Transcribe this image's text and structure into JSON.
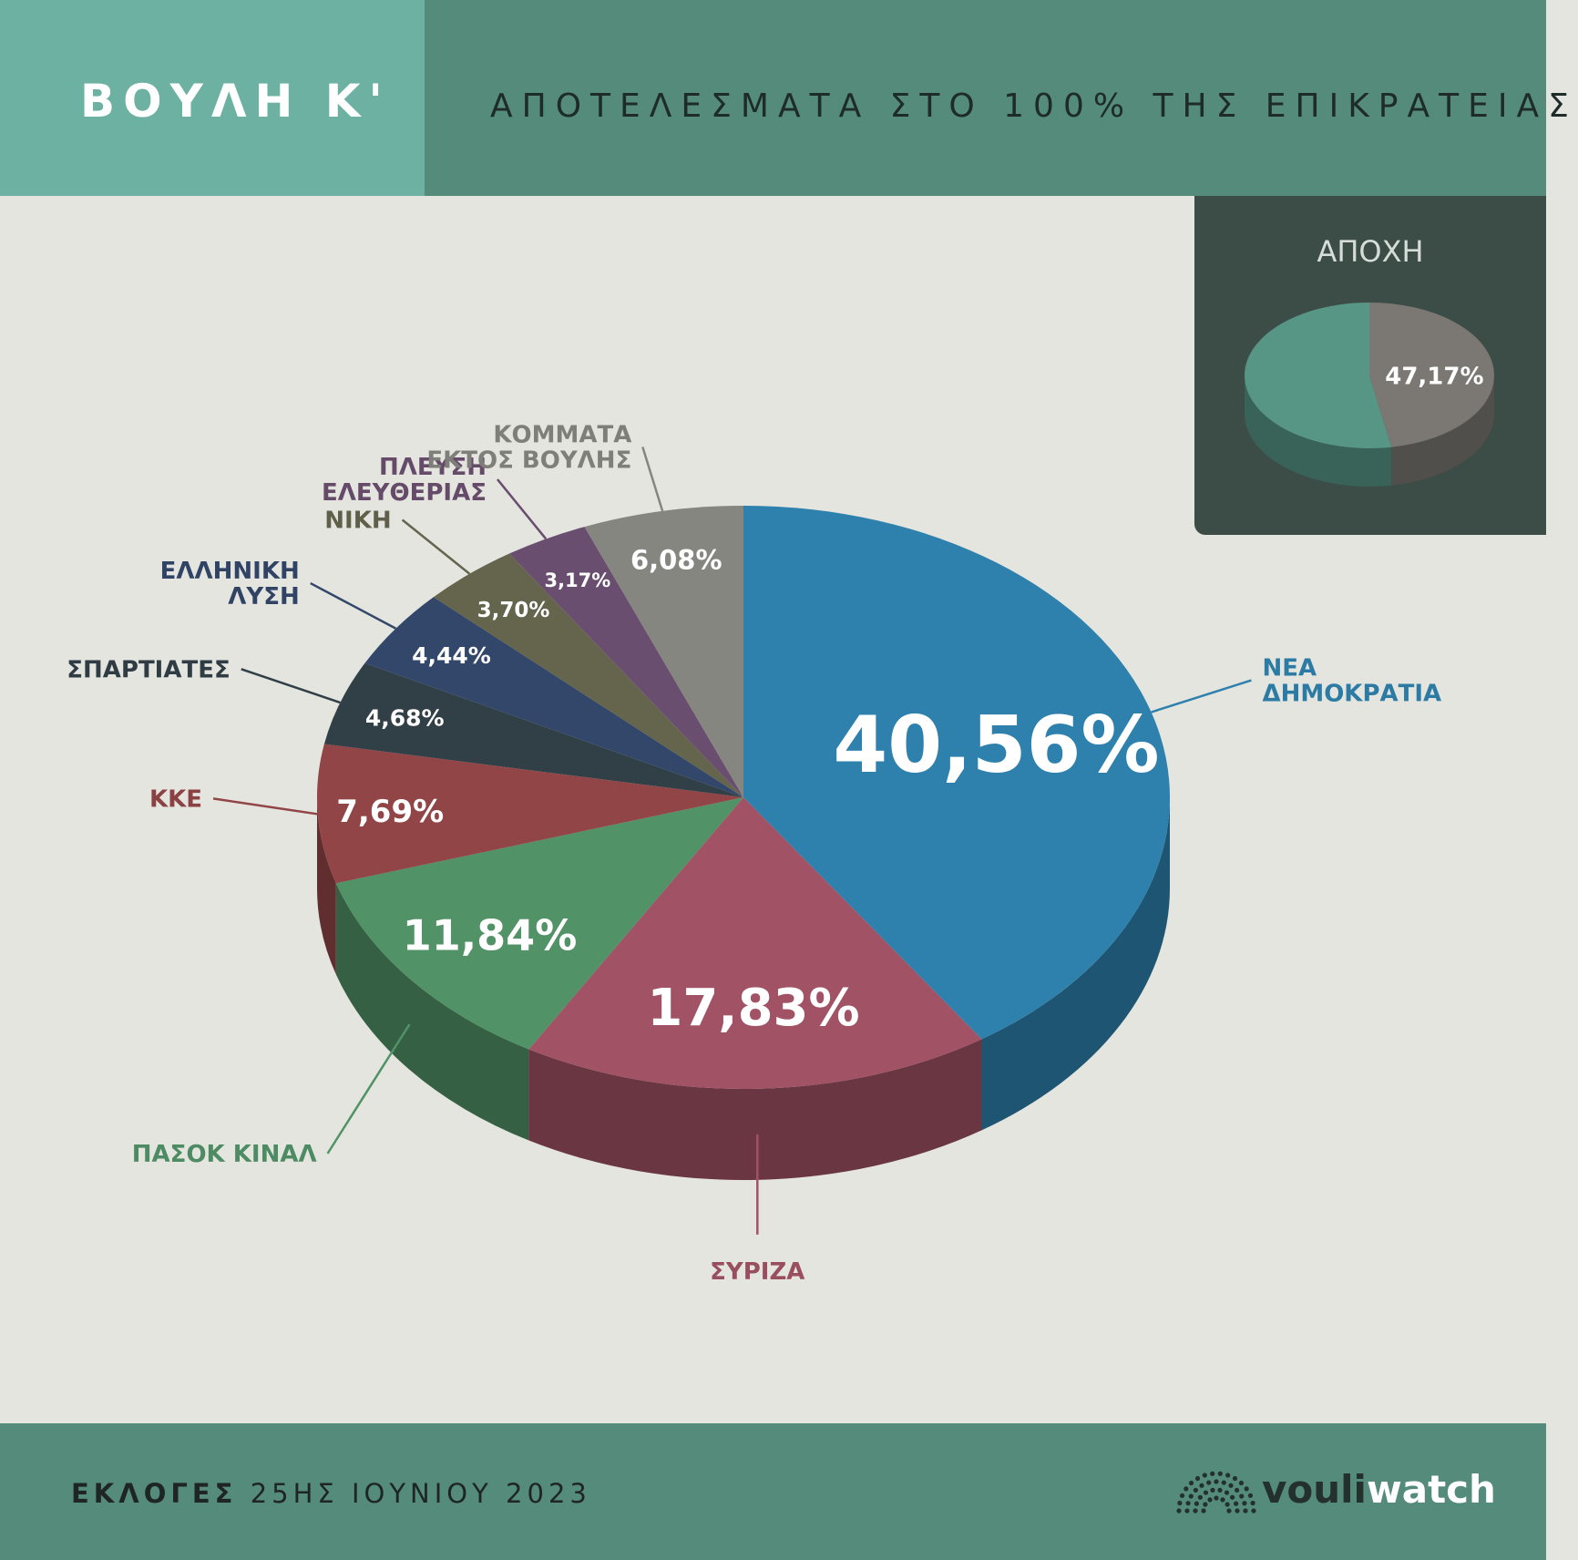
{
  "header": {
    "title": "ΒΟΥΛΗ Κ'",
    "subtitle": "ΑΠΟΤΕΛΕΣΜΑΤΑ ΣΤΟ 100% ΤΗΣ ΕΠΙΚΡΑΤΕΙΑΣ"
  },
  "abstention": {
    "title": "ΑΠΟΧΗ",
    "value": 47.17,
    "label": "47,17%",
    "colors": {
      "abstention": "#7b7772",
      "voted": "#579585"
    }
  },
  "chart_data": {
    "type": "pie",
    "slices": [
      {
        "name": "ΝΕΑ ΔΗΜΟΚΡΑΤΙΑ",
        "value": 40.56,
        "label": "40,56%",
        "color": "#2e81ad"
      },
      {
        "name": "ΣΥΡΙΖΑ",
        "value": 17.83,
        "label": "17,83%",
        "color": "#a15264"
      },
      {
        "name": "ΠΑΣΟΚ ΚΙΝΑΛ",
        "value": 11.84,
        "label": "11,84%",
        "color": "#519267"
      },
      {
        "name": "ΚΚΕ",
        "value": 7.69,
        "label": "7,69%",
        "color": "#914546"
      },
      {
        "name": "ΣΠΑΡΤΙΑΤΕΣ",
        "value": 4.68,
        "label": "4,68%",
        "color": "#313f46"
      },
      {
        "name": "ΕΛΛΗΝΙΚΗ ΛΥΣΗ",
        "value": 4.44,
        "label": "4,44%",
        "color": "#32476a"
      },
      {
        "name": "ΝΙΚΗ",
        "value": 3.7,
        "label": "3,70%",
        "color": "#65654e"
      },
      {
        "name": "ΠΛΕΥΣΗ ΕΛΕΥΘΕΡΙΑΣ",
        "value": 3.17,
        "label": "3,17%",
        "color": "#6a4e6f"
      },
      {
        "name": "ΚΟΜΜΑΤΑ ΕΚΤΟΣ ΒΟΥΛΗΣ",
        "value": 6.08,
        "label": "6,08%",
        "color": "#868680"
      }
    ],
    "legend_labels": [
      [
        "ΝΕΑ",
        "ΔΗΜΟΚΡΑΤΙΑ"
      ],
      [
        "ΣΥΡΙΖΑ"
      ],
      [
        "ΠΑΣΟΚ ΚΙΝΑΛ"
      ],
      [
        "ΚΚΕ"
      ],
      [
        "ΣΠΑΡΤΙΑΤΕΣ"
      ],
      [
        "ΕΛΛΗΝΙΚΗ",
        "ΛΥΣΗ"
      ],
      [
        "ΝΙΚΗ"
      ],
      [
        "ΠΛΕΥΣΗ",
        "ΕΛΕΥΘΕΡΙΑΣ"
      ],
      [
        "ΚΟΜΜΑΤΑ",
        "ΕΚΤΟΣ ΒΟΥΛΗΣ"
      ]
    ],
    "style": "3d"
  },
  "footer": {
    "label_bold": "ΕΚΛΟΓΕΣ",
    "label_date": "25ΗΣ ΙΟΥΝΙΟΥ 2023",
    "logo_part1": "vouli",
    "logo_part2": "watch"
  }
}
